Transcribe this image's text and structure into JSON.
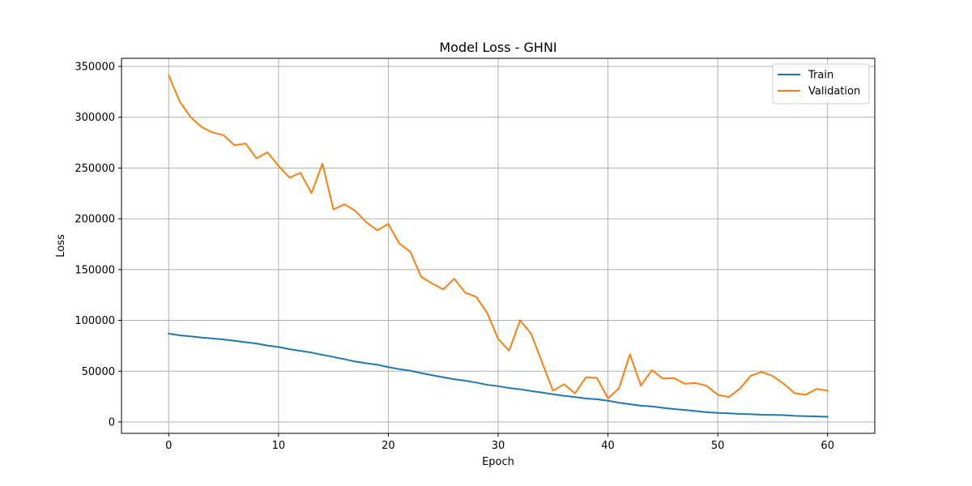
{
  "chart_data": {
    "type": "line",
    "title": "Model Loss - GHNI",
    "xlabel": "Epoch",
    "ylabel": "Loss",
    "xlim": [
      -4.3,
      64.3
    ],
    "ylim": [
      -11200,
      358000
    ],
    "xticks": [
      0,
      10,
      20,
      30,
      40,
      50,
      60
    ],
    "xtick_labels": [
      "0",
      "10",
      "20",
      "30",
      "40",
      "50",
      "60"
    ],
    "yticks": [
      0,
      50000,
      100000,
      150000,
      200000,
      250000,
      300000,
      350000
    ],
    "ytick_labels": [
      "0",
      "50000",
      "100000",
      "150000",
      "200000",
      "250000",
      "300000",
      "350000"
    ],
    "grid": true,
    "legend_position": "upper right",
    "x": [
      0,
      1,
      2,
      3,
      4,
      5,
      6,
      7,
      8,
      9,
      10,
      11,
      12,
      13,
      14,
      15,
      16,
      17,
      18,
      19,
      20,
      21,
      22,
      23,
      24,
      25,
      26,
      27,
      28,
      29,
      30,
      31,
      32,
      33,
      34,
      35,
      36,
      37,
      38,
      39,
      40,
      41,
      42,
      43,
      44,
      45,
      46,
      47,
      48,
      49,
      50,
      51,
      52,
      53,
      54,
      55,
      56,
      57,
      58,
      59,
      60
    ],
    "series": [
      {
        "name": "Train",
        "color": "#1f77b4",
        "values": [
          87000,
          85300,
          84300,
          83100,
          82200,
          81200,
          79900,
          78500,
          77200,
          75200,
          73800,
          71600,
          70000,
          68300,
          66100,
          64000,
          61800,
          59500,
          57800,
          56400,
          54000,
          52000,
          50500,
          48100,
          46000,
          44000,
          42000,
          40600,
          38800,
          36600,
          35300,
          33400,
          32200,
          30500,
          29000,
          27300,
          25800,
          24600,
          23100,
          22400,
          20900,
          19000,
          17500,
          16000,
          15300,
          13900,
          12700,
          11800,
          10700,
          9600,
          8900,
          8500,
          7900,
          7600,
          7100,
          6900,
          6700,
          6000,
          5700,
          5400,
          5200
        ]
      },
      {
        "name": "Validation",
        "color": "#ff7f0e",
        "values": [
          341000,
          315500,
          300000,
          290300,
          285000,
          282300,
          272400,
          274200,
          259500,
          265600,
          252000,
          240600,
          245300,
          225300,
          254300,
          209200,
          214400,
          207800,
          196500,
          188800,
          195000,
          175500,
          167700,
          142700,
          136300,
          130400,
          141000,
          127300,
          123200,
          107300,
          81800,
          70200,
          100100,
          86900,
          58700,
          30700,
          37200,
          28100,
          44000,
          43400,
          23200,
          33100,
          66600,
          35800,
          51100,
          42700,
          43200,
          37600,
          38300,
          35600,
          26700,
          24600,
          32700,
          45500,
          49300,
          45300,
          37700,
          28400,
          26800,
          32600,
          30900
        ]
      }
    ]
  }
}
